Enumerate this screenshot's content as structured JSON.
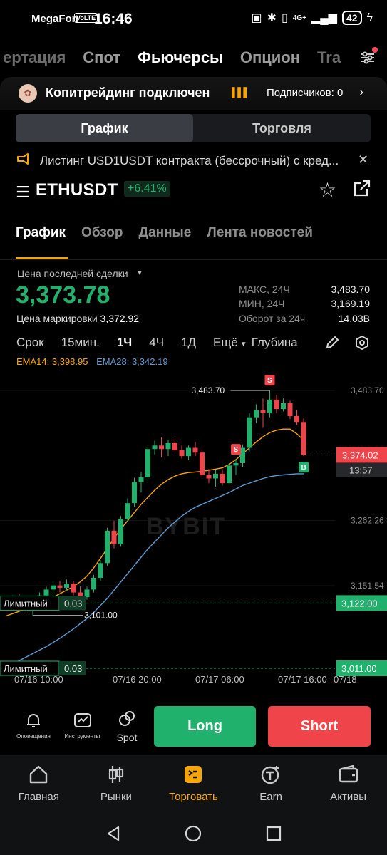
{
  "status": {
    "carrier": "MegaFon",
    "volte": "VoLTE",
    "time": "16:46",
    "network": "4G+",
    "battery": "42"
  },
  "topnav": {
    "items": [
      "ертация",
      "Спот",
      "Фьючерсы",
      "Опцион",
      "Tra"
    ],
    "active_index": 2
  },
  "copytrade": {
    "title": "Копитрейдинг подключен",
    "subscribers": "Подписчиков: 0"
  },
  "segment": {
    "chart": "График",
    "trade": "Торговля"
  },
  "announcement": {
    "text": "Листинг USD1USDT контракта (бессрочный) с кред..."
  },
  "symbol": {
    "name": "ETHUSDT",
    "change": "+6.41%"
  },
  "tabs": [
    "График",
    "Обзор",
    "Данные",
    "Лента новостей"
  ],
  "ticker": {
    "last_price_label": "Цена последней сделки",
    "last_price": "3,373.78",
    "mark_label": "Цена маркировки",
    "mark_price": "3,372.92",
    "high_label": "МАКС, 24Ч",
    "high": "3,483.70",
    "low_label": "МИН, 24Ч",
    "low": "3,169.19",
    "turnover_label": "Оборот за 24ч",
    "turnover": "14.03B"
  },
  "intervals": {
    "items": [
      "Срок",
      "15мин.",
      "1Ч",
      "4Ч",
      "1Д",
      "Ещё"
    ],
    "active": "1Ч",
    "depth": "Глубина"
  },
  "ema": {
    "ema14_label": "EMA14: 3,398.95",
    "ema28_label": "EMA28: 3,342.19"
  },
  "chart_data": {
    "type": "candlestick",
    "title": "",
    "watermark": "BYBIT",
    "y_ticks": [
      "3,483.70",
      "3,262.26",
      "3,151.54"
    ],
    "x_ticks": [
      "07/16 10:00",
      "07/16 20:00",
      "07/17 06:00",
      "07/17 16:00",
      "07/18"
    ],
    "ylim": [
      3011,
      3520
    ],
    "candles": [
      [
        3128,
        3134,
        3115,
        3120
      ],
      [
        3120,
        3135,
        3112,
        3130
      ],
      [
        3130,
        3138,
        3118,
        3122
      ],
      [
        3122,
        3130,
        3108,
        3112
      ],
      [
        3112,
        3128,
        3101,
        3125
      ],
      [
        3125,
        3140,
        3118,
        3135
      ],
      [
        3135,
        3150,
        3128,
        3145
      ],
      [
        3145,
        3158,
        3138,
        3152
      ],
      [
        3152,
        3160,
        3140,
        3148
      ],
      [
        3148,
        3162,
        3142,
        3155
      ],
      [
        3155,
        3160,
        3135,
        3140
      ],
      [
        3140,
        3150,
        3128,
        3132
      ],
      [
        3132,
        3150,
        3128,
        3145
      ],
      [
        3145,
        3170,
        3140,
        3165
      ],
      [
        3165,
        3195,
        3160,
        3190
      ],
      [
        3190,
        3250,
        3185,
        3245
      ],
      [
        3245,
        3262,
        3215,
        3222
      ],
      [
        3222,
        3270,
        3218,
        3265
      ],
      [
        3265,
        3300,
        3260,
        3292
      ],
      [
        3292,
        3335,
        3285,
        3328
      ],
      [
        3328,
        3345,
        3310,
        3336
      ],
      [
        3336,
        3390,
        3330,
        3384
      ],
      [
        3384,
        3398,
        3375,
        3390
      ],
      [
        3390,
        3404,
        3370,
        3384
      ],
      [
        3384,
        3400,
        3372,
        3394
      ],
      [
        3394,
        3402,
        3378,
        3382
      ],
      [
        3382,
        3390,
        3368,
        3372
      ],
      [
        3372,
        3390,
        3365,
        3386
      ],
      [
        3386,
        3396,
        3372,
        3378
      ],
      [
        3378,
        3384,
        3336,
        3340
      ],
      [
        3340,
        3350,
        3326,
        3334
      ],
      [
        3334,
        3348,
        3320,
        3342
      ],
      [
        3342,
        3350,
        3322,
        3326
      ],
      [
        3326,
        3362,
        3322,
        3356
      ],
      [
        3356,
        3366,
        3340,
        3360
      ],
      [
        3360,
        3392,
        3354,
        3386
      ],
      [
        3386,
        3445,
        3380,
        3438
      ],
      [
        3438,
        3460,
        3428,
        3450
      ],
      [
        3450,
        3470,
        3420,
        3445
      ],
      [
        3445,
        3483.7,
        3438,
        3468
      ],
      [
        3468,
        3476,
        3445,
        3452
      ],
      [
        3452,
        3470,
        3448,
        3462
      ],
      [
        3462,
        3466,
        3435,
        3440
      ],
      [
        3440,
        3450,
        3425,
        3430
      ],
      [
        3430,
        3436,
        3372,
        3374
      ]
    ],
    "ema14": [
      3100,
      3104,
      3108,
      3112,
      3116,
      3121,
      3126,
      3132,
      3138,
      3144,
      3150,
      3158,
      3168,
      3182,
      3198,
      3215,
      3232,
      3248,
      3262,
      3276,
      3290,
      3302,
      3314,
      3324,
      3332,
      3338,
      3342,
      3344,
      3345,
      3346,
      3348,
      3350,
      3352,
      3358,
      3366,
      3376,
      3386,
      3396,
      3405,
      3412,
      3416,
      3418,
      3418,
      3410,
      3399
    ],
    "ema28": [
      3012,
      3018,
      3024,
      3030,
      3036,
      3042,
      3048,
      3055,
      3062,
      3070,
      3078,
      3087,
      3096,
      3106,
      3118,
      3130,
      3144,
      3158,
      3172,
      3186,
      3200,
      3214,
      3226,
      3238,
      3250,
      3260,
      3270,
      3278,
      3285,
      3290,
      3295,
      3300,
      3305,
      3310,
      3316,
      3322,
      3326,
      3330,
      3334,
      3337,
      3339,
      3340,
      3341,
      3342,
      3342
    ],
    "price_tag": "3,374.02",
    "countdown": "13:57",
    "high_marker": "3,483.70",
    "low_marker": "3,101.00",
    "orders": [
      {
        "label": "Лимитный",
        "qty": "0.03",
        "price": "3,122.00"
      },
      {
        "label": "Лимитный",
        "qty": "0.03",
        "price": "3,011.00"
      }
    ],
    "signals": [
      {
        "type": "S",
        "index": 39
      },
      {
        "type": "S",
        "index": 34
      },
      {
        "type": "B",
        "index": 44
      }
    ]
  },
  "actions": {
    "alerts": "Оповещения",
    "tools": "Инструменты",
    "spot": "Spot",
    "long": "Long",
    "short": "Short"
  },
  "bottomnav": {
    "items": [
      "Главная",
      "Рынки",
      "Торговать",
      "Earn",
      "Активы"
    ],
    "active_index": 2
  },
  "colors": {
    "up": "#20b26c",
    "down": "#ef454a",
    "accent": "#f7a600",
    "ema14": "#f7a600",
    "ema28": "#5e9bd0"
  }
}
